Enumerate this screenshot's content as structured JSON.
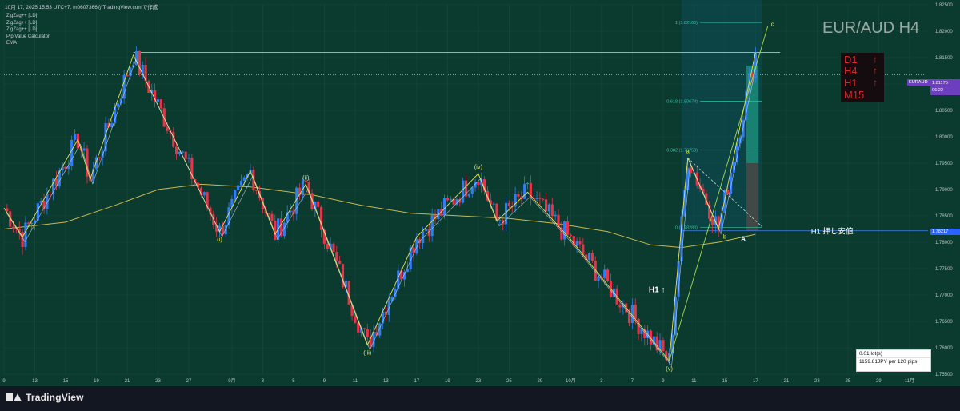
{
  "header": {
    "meta": "10月 17, 2025 15:53 UTC+7.  m0607366がTradingView.comで作成",
    "indicators": [
      "ZigZag++ [LD]",
      "ZigZag++ [LD]",
      "ZigZag++ [LD]",
      "Pip Value Calculator",
      "EMA"
    ]
  },
  "symbol_title": "EUR/AUD H4",
  "status_panel": {
    "timeframes": [
      "D1",
      "H4",
      "H1",
      "M15"
    ],
    "arrow": "↑"
  },
  "price_labels": {
    "symbol_tag": "EURAUD",
    "current_price": "1.81175",
    "countdown": "06:22",
    "support_price": "1.78217"
  },
  "pip_box": {
    "lot": "0.01 lot(s)",
    "value": "1159.81JPY per 120 pips"
  },
  "footer": {
    "brand": "TradingView"
  },
  "colors": {
    "background": "#0b3a2f",
    "bull_candle": "#2f7df6",
    "bear_candle": "#e8344a",
    "zigzag_yellow": "#e6e35a",
    "zigzag_white": "#d7e3ea",
    "ema": "#c9b84d",
    "fib_teal": "#2ec4a4",
    "support_line": "#3b78d8"
  },
  "chart_data": {
    "type": "candlestick",
    "symbol": "EURAUD",
    "timeframe": "H4",
    "ylim": [
      1.755,
      1.825
    ],
    "yticks": [
      1.755,
      1.76,
      1.765,
      1.77,
      1.775,
      1.78,
      1.785,
      1.79,
      1.795,
      1.8,
      1.805,
      1.81,
      1.815,
      1.82,
      1.825
    ],
    "ytick_labels": [
      "1.75500",
      "1.76000",
      "1.76500",
      "1.77000",
      "1.77500",
      "1.78000",
      "1.78500",
      "1.79000",
      "1.79500",
      "1.80000",
      "1.80500",
      "1.81000",
      "1.81500",
      "1.82000",
      "1.82500"
    ],
    "xlim": [
      0,
      150
    ],
    "xticks": [
      {
        "label": "9",
        "t": 0
      },
      {
        "label": "13",
        "t": 5
      },
      {
        "label": "15",
        "t": 10
      },
      {
        "label": "19",
        "t": 15
      },
      {
        "label": "21",
        "t": 20
      },
      {
        "label": "23",
        "t": 25
      },
      {
        "label": "27",
        "t": 30
      },
      {
        "label": "9月",
        "t": 37
      },
      {
        "label": "3",
        "t": 42
      },
      {
        "label": "5",
        "t": 47
      },
      {
        "label": "9",
        "t": 52
      },
      {
        "label": "11",
        "t": 57
      },
      {
        "label": "13",
        "t": 62
      },
      {
        "label": "17",
        "t": 67
      },
      {
        "label": "19",
        "t": 72
      },
      {
        "label": "23",
        "t": 77
      },
      {
        "label": "25",
        "t": 82
      },
      {
        "label": "29",
        "t": 87
      },
      {
        "label": "10月",
        "t": 92
      },
      {
        "label": "3",
        "t": 97
      },
      {
        "label": "7",
        "t": 102
      },
      {
        "label": "9",
        "t": 107
      },
      {
        "label": "11",
        "t": 112
      },
      {
        "label": "15",
        "t": 117
      },
      {
        "label": "17",
        "t": 122
      },
      {
        "label": "21",
        "t": 127
      },
      {
        "label": "23",
        "t": 132
      },
      {
        "label": "25",
        "t": 137
      },
      {
        "label": "29",
        "t": 142
      },
      {
        "label": "11月",
        "t": 147
      }
    ],
    "zigzag_points": [
      {
        "t": 0,
        "p": 1.7865
      },
      {
        "t": 3,
        "p": 1.781
      },
      {
        "t": 12,
        "p": 1.7995
      },
      {
        "t": 14,
        "p": 1.792
      },
      {
        "t": 21,
        "p": 1.8155
      },
      {
        "t": 35,
        "p": 1.782
      },
      {
        "t": 40,
        "p": 1.7935
      },
      {
        "t": 44,
        "p": 1.7815
      },
      {
        "t": 49,
        "p": 1.791
      },
      {
        "t": 59,
        "p": 1.7605
      },
      {
        "t": 67,
        "p": 1.781
      },
      {
        "t": 77,
        "p": 1.793
      },
      {
        "t": 80,
        "p": 1.784
      },
      {
        "t": 85,
        "p": 1.7895
      },
      {
        "t": 92,
        "p": 1.7805
      },
      {
        "t": 108,
        "p": 1.7575
      },
      {
        "t": 111,
        "p": 1.796
      },
      {
        "t": 116,
        "p": 1.7825
      },
      {
        "t": 122,
        "p": 1.816
      }
    ],
    "wave_labels": [
      {
        "text": "(i)",
        "t": 35,
        "p": 1.782,
        "pos": "below"
      },
      {
        "text": "(ii)",
        "t": 49,
        "p": 1.791,
        "pos": "above"
      },
      {
        "text": "(iii)",
        "t": 59,
        "p": 1.7605,
        "pos": "below"
      },
      {
        "text": "(iv)",
        "t": 77,
        "p": 1.793,
        "pos": "above"
      },
      {
        "text": "(v)",
        "t": 108,
        "p": 1.7575,
        "pos": "below"
      },
      {
        "text": "a",
        "t": 111,
        "p": 1.796,
        "pos": "above"
      },
      {
        "text": "b",
        "t": 117,
        "p": 1.7825,
        "pos": "below"
      },
      {
        "text": "c",
        "t": 124,
        "p": 1.821,
        "pos": "right"
      }
    ],
    "fib_levels": [
      {
        "label": "1 (1.82165)",
        "value": 1.82165
      },
      {
        "label": "0.618 (1.80674)",
        "value": 1.80674
      },
      {
        "label": "0.382 (1.79753)",
        "value": 1.79753
      },
      {
        "label": "0 (1.78283)",
        "value": 1.78283
      }
    ],
    "horizontal_lines": [
      {
        "name": "resistance",
        "value": 1.816
      },
      {
        "name": "current",
        "value": 1.81175
      },
      {
        "name": "support",
        "value": 1.78217,
        "label": "H1 押し安値"
      }
    ],
    "annotations": [
      {
        "text": "H1 ↑",
        "t": 106,
        "p": 1.7705
      },
      {
        "text": "A",
        "t": 120,
        "p": 1.7802
      }
    ],
    "ema_points": [
      {
        "t": 0,
        "p": 1.7825
      },
      {
        "t": 10,
        "p": 1.7838
      },
      {
        "t": 18,
        "p": 1.787
      },
      {
        "t": 25,
        "p": 1.79
      },
      {
        "t": 32,
        "p": 1.791
      },
      {
        "t": 40,
        "p": 1.7905
      },
      {
        "t": 50,
        "p": 1.789
      },
      {
        "t": 58,
        "p": 1.787
      },
      {
        "t": 66,
        "p": 1.7855
      },
      {
        "t": 74,
        "p": 1.785
      },
      {
        "t": 82,
        "p": 1.7845
      },
      {
        "t": 90,
        "p": 1.7835
      },
      {
        "t": 98,
        "p": 1.782
      },
      {
        "t": 105,
        "p": 1.7795
      },
      {
        "t": 110,
        "p": 1.779
      },
      {
        "t": 116,
        "p": 1.78
      },
      {
        "t": 122,
        "p": 1.7815
      }
    ]
  }
}
